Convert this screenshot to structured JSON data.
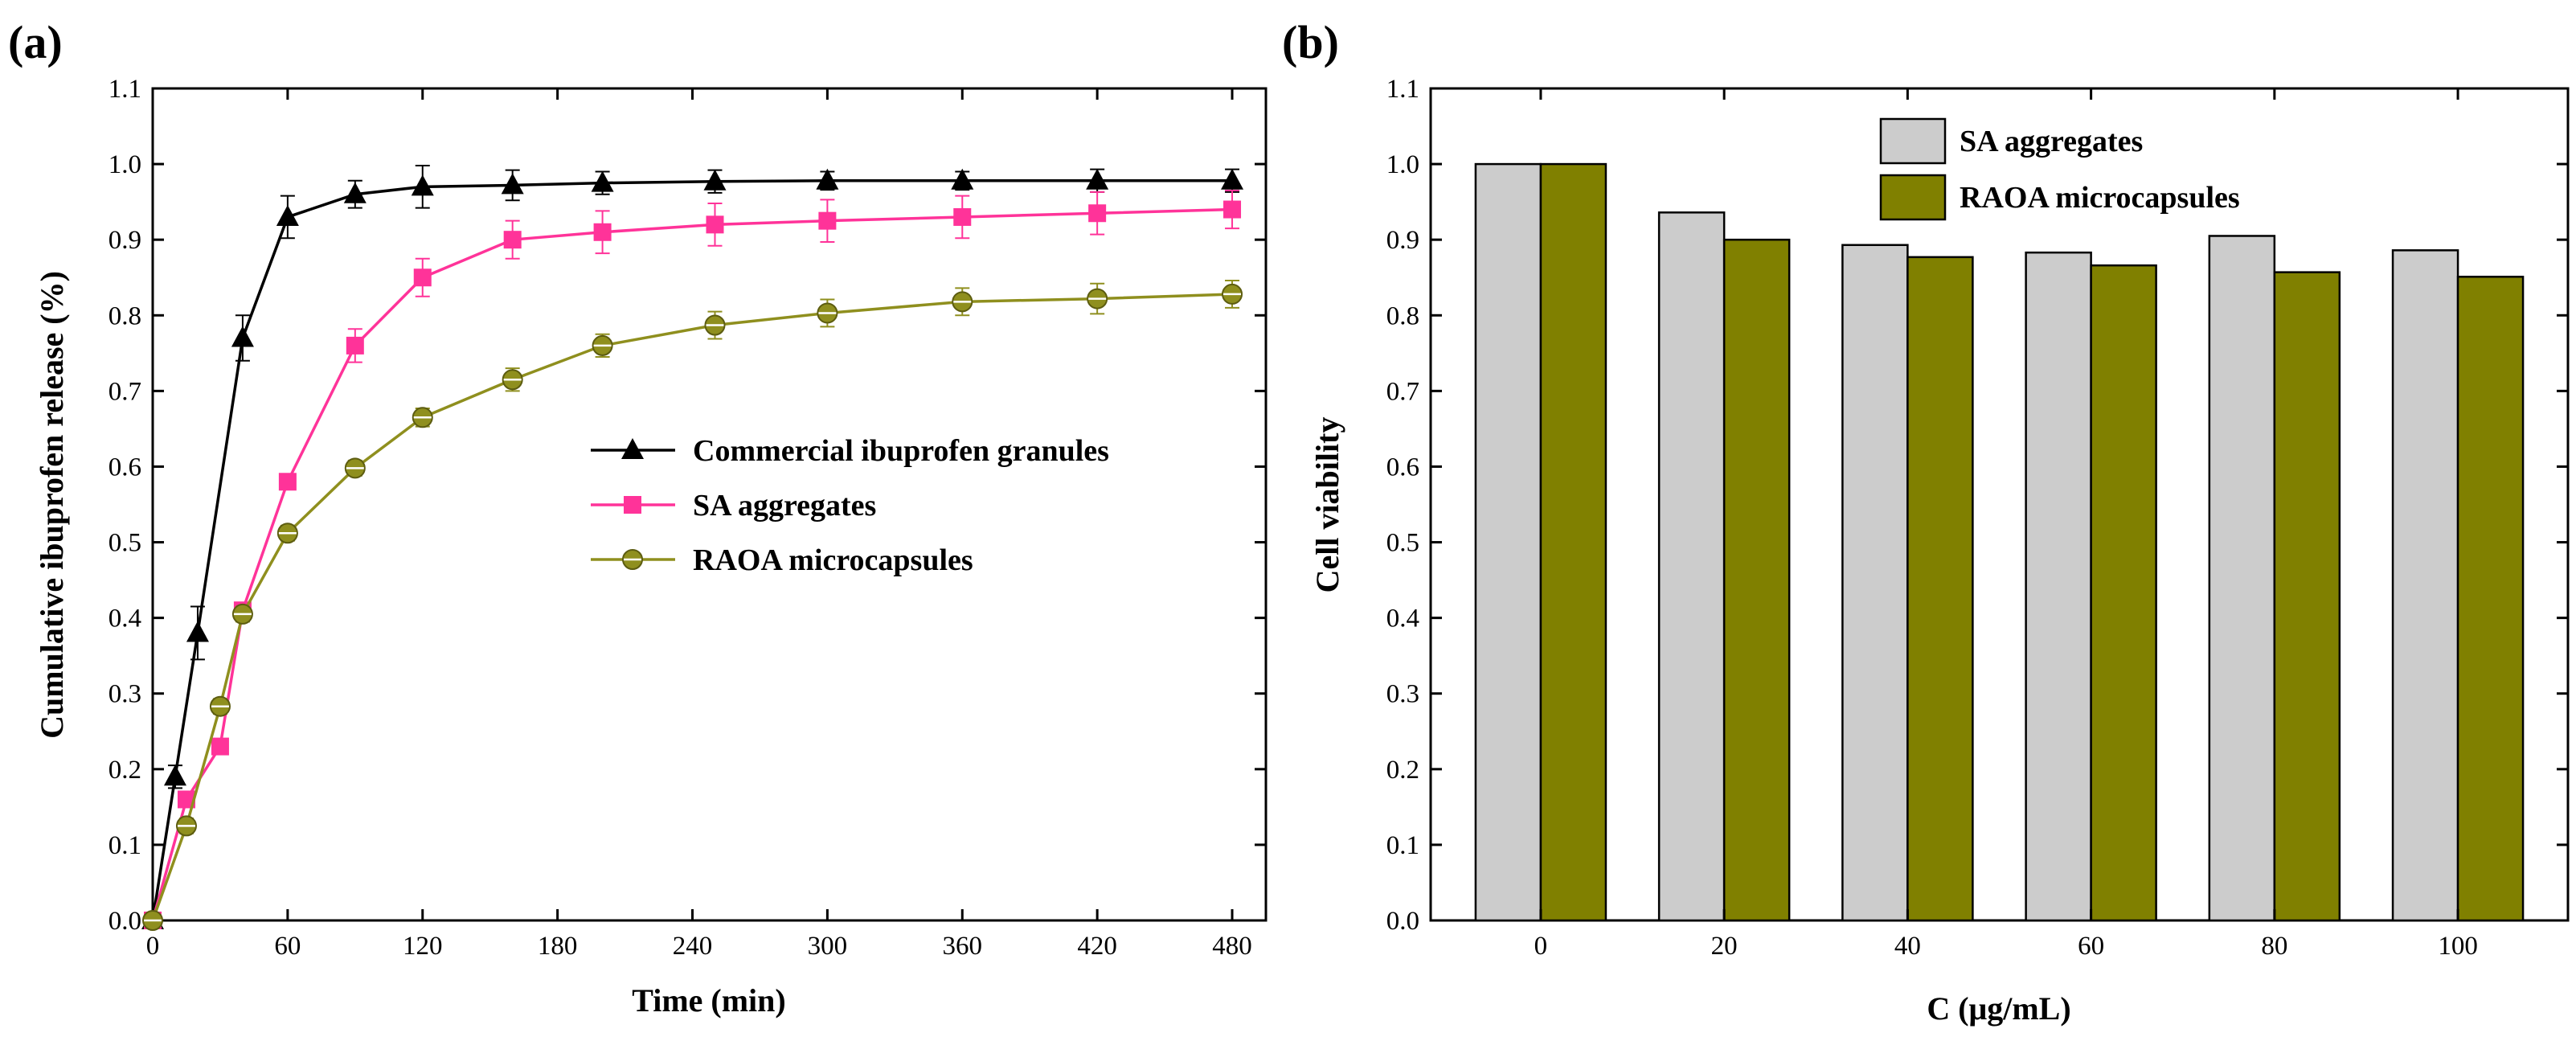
{
  "chart_data": [
    {
      "type": "line",
      "panel_label": "(a)",
      "xlabel": "Time (min)",
      "ylabel": "Cumulative ibuprofen release (%)",
      "xlim": [
        0,
        495
      ],
      "ylim": [
        0,
        1.1
      ],
      "xticks": [
        0,
        60,
        120,
        180,
        240,
        300,
        360,
        420,
        480
      ],
      "yticks": [
        "0.0",
        "0.1",
        "0.2",
        "0.3",
        "0.4",
        "0.5",
        "0.6",
        "0.7",
        "0.8",
        "0.9",
        "1.0",
        "1.1"
      ],
      "legend_position": "center-right",
      "series": [
        {
          "name": "Commercial ibuprofen granules",
          "color": "#000000",
          "marker": "triangle",
          "x": [
            0,
            10,
            20,
            40,
            60,
            90,
            120,
            160,
            200,
            250,
            300,
            360,
            420,
            480
          ],
          "y": [
            0.0,
            0.19,
            0.38,
            0.77,
            0.93,
            0.96,
            0.97,
            0.972,
            0.975,
            0.977,
            0.978,
            0.978,
            0.978,
            0.978
          ],
          "err": [
            0,
            0.015,
            0.035,
            0.03,
            0.028,
            0.018,
            0.028,
            0.02,
            0.015,
            0.015,
            0.012,
            0.012,
            0.015,
            0.015
          ]
        },
        {
          "name": "SA aggregates",
          "color": "#ff3399",
          "marker": "square",
          "x": [
            0,
            15,
            30,
            40,
            60,
            90,
            120,
            160,
            200,
            250,
            300,
            360,
            420,
            480
          ],
          "y": [
            0.0,
            0.16,
            0.23,
            0.41,
            0.58,
            0.76,
            0.85,
            0.9,
            0.91,
            0.92,
            0.925,
            0.93,
            0.935,
            0.94
          ],
          "err": [
            0,
            0.01,
            0.01,
            0.01,
            0.01,
            0.022,
            0.025,
            0.025,
            0.028,
            0.028,
            0.028,
            0.028,
            0.028,
            0.025
          ]
        },
        {
          "name": "RAOA microcapsules",
          "color": "#8f8f1e",
          "marker": "circle",
          "x": [
            0,
            15,
            30,
            40,
            60,
            90,
            120,
            160,
            200,
            250,
            300,
            360,
            420,
            480
          ],
          "y": [
            0.0,
            0.125,
            0.283,
            0.405,
            0.512,
            0.598,
            0.665,
            0.715,
            0.76,
            0.787,
            0.803,
            0.818,
            0.822,
            0.828
          ],
          "err": [
            0,
            0.01,
            0.01,
            0.01,
            0.01,
            0.01,
            0.012,
            0.015,
            0.015,
            0.018,
            0.018,
            0.018,
            0.02,
            0.018
          ]
        }
      ]
    },
    {
      "type": "bar",
      "panel_label": "(b)",
      "xlabel": "C (μg/mL)",
      "ylabel": "Cell viability",
      "ylim": [
        0,
        1.1
      ],
      "yticks": [
        "0.0",
        "0.1",
        "0.2",
        "0.3",
        "0.4",
        "0.5",
        "0.6",
        "0.7",
        "0.8",
        "0.9",
        "1.0",
        "1.1"
      ],
      "categories": [
        "0",
        "20",
        "40",
        "60",
        "80",
        "100"
      ],
      "legend_position": "top-center",
      "series": [
        {
          "name": "SA aggregates",
          "color": "#cccccc",
          "values": [
            1.0,
            0.936,
            0.893,
            0.883,
            0.905,
            0.886
          ]
        },
        {
          "name": "RAOA  microcapsules",
          "color": "#808000",
          "values": [
            1.0,
            0.9,
            0.877,
            0.866,
            0.857,
            0.851
          ]
        }
      ]
    }
  ]
}
